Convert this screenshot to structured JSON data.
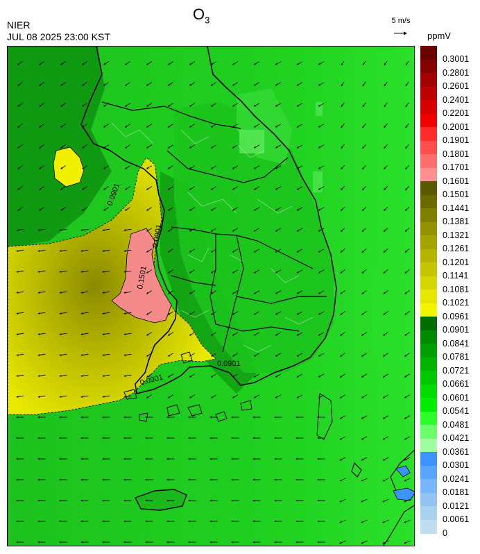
{
  "header": {
    "title_main": "O",
    "title_sub": "3",
    "agency": "NIER",
    "timestamp": "JUL 08 2025 23:00 KST",
    "wind_reference": "5 m/s",
    "unit": "ppmV"
  },
  "legend": {
    "labels": [
      "0.3001",
      "0.2801",
      "0.2601",
      "0.2401",
      "0.2201",
      "0.2001",
      "0.1901",
      "0.1801",
      "0.1701",
      "0.1601",
      "0.1501",
      "0.1441",
      "0.1381",
      "0.1321",
      "0.1261",
      "0.1201",
      "0.1141",
      "0.1081",
      "0.1021",
      "0.0961",
      "0.0901",
      "0.0841",
      "0.0781",
      "0.0721",
      "0.0661",
      "0.0601",
      "0.0541",
      "0.0481",
      "0.0421",
      "0.0361",
      "0.0301",
      "0.0241",
      "0.0181",
      "0.0121",
      "0.0061",
      "0"
    ],
    "colors": [
      "#6b0000",
      "#850000",
      "#a30000",
      "#bd0000",
      "#d90000",
      "#f20000",
      "#ff2a2a",
      "#ff4d4d",
      "#ff6e6e",
      "#ff9090",
      "#5a5a00",
      "#6b6b00",
      "#7f7f00",
      "#929200",
      "#a4a400",
      "#b5b500",
      "#c6c600",
      "#d6d600",
      "#e6e600",
      "#f5f500",
      "#006e00",
      "#008a00",
      "#00a000",
      "#00b400",
      "#00c800",
      "#00dc00",
      "#00ee00",
      "#2cff2c",
      "#6bff6b",
      "#9fff9f",
      "#3c94ff",
      "#5aa6ff",
      "#78b6ff",
      "#92c4f4",
      "#a9d1f0",
      "#c1def0"
    ]
  },
  "map": {
    "contour_labels": [
      "0.0901",
      "0.0901",
      "0.1501",
      "0.0901",
      "0.0901"
    ]
  }
}
